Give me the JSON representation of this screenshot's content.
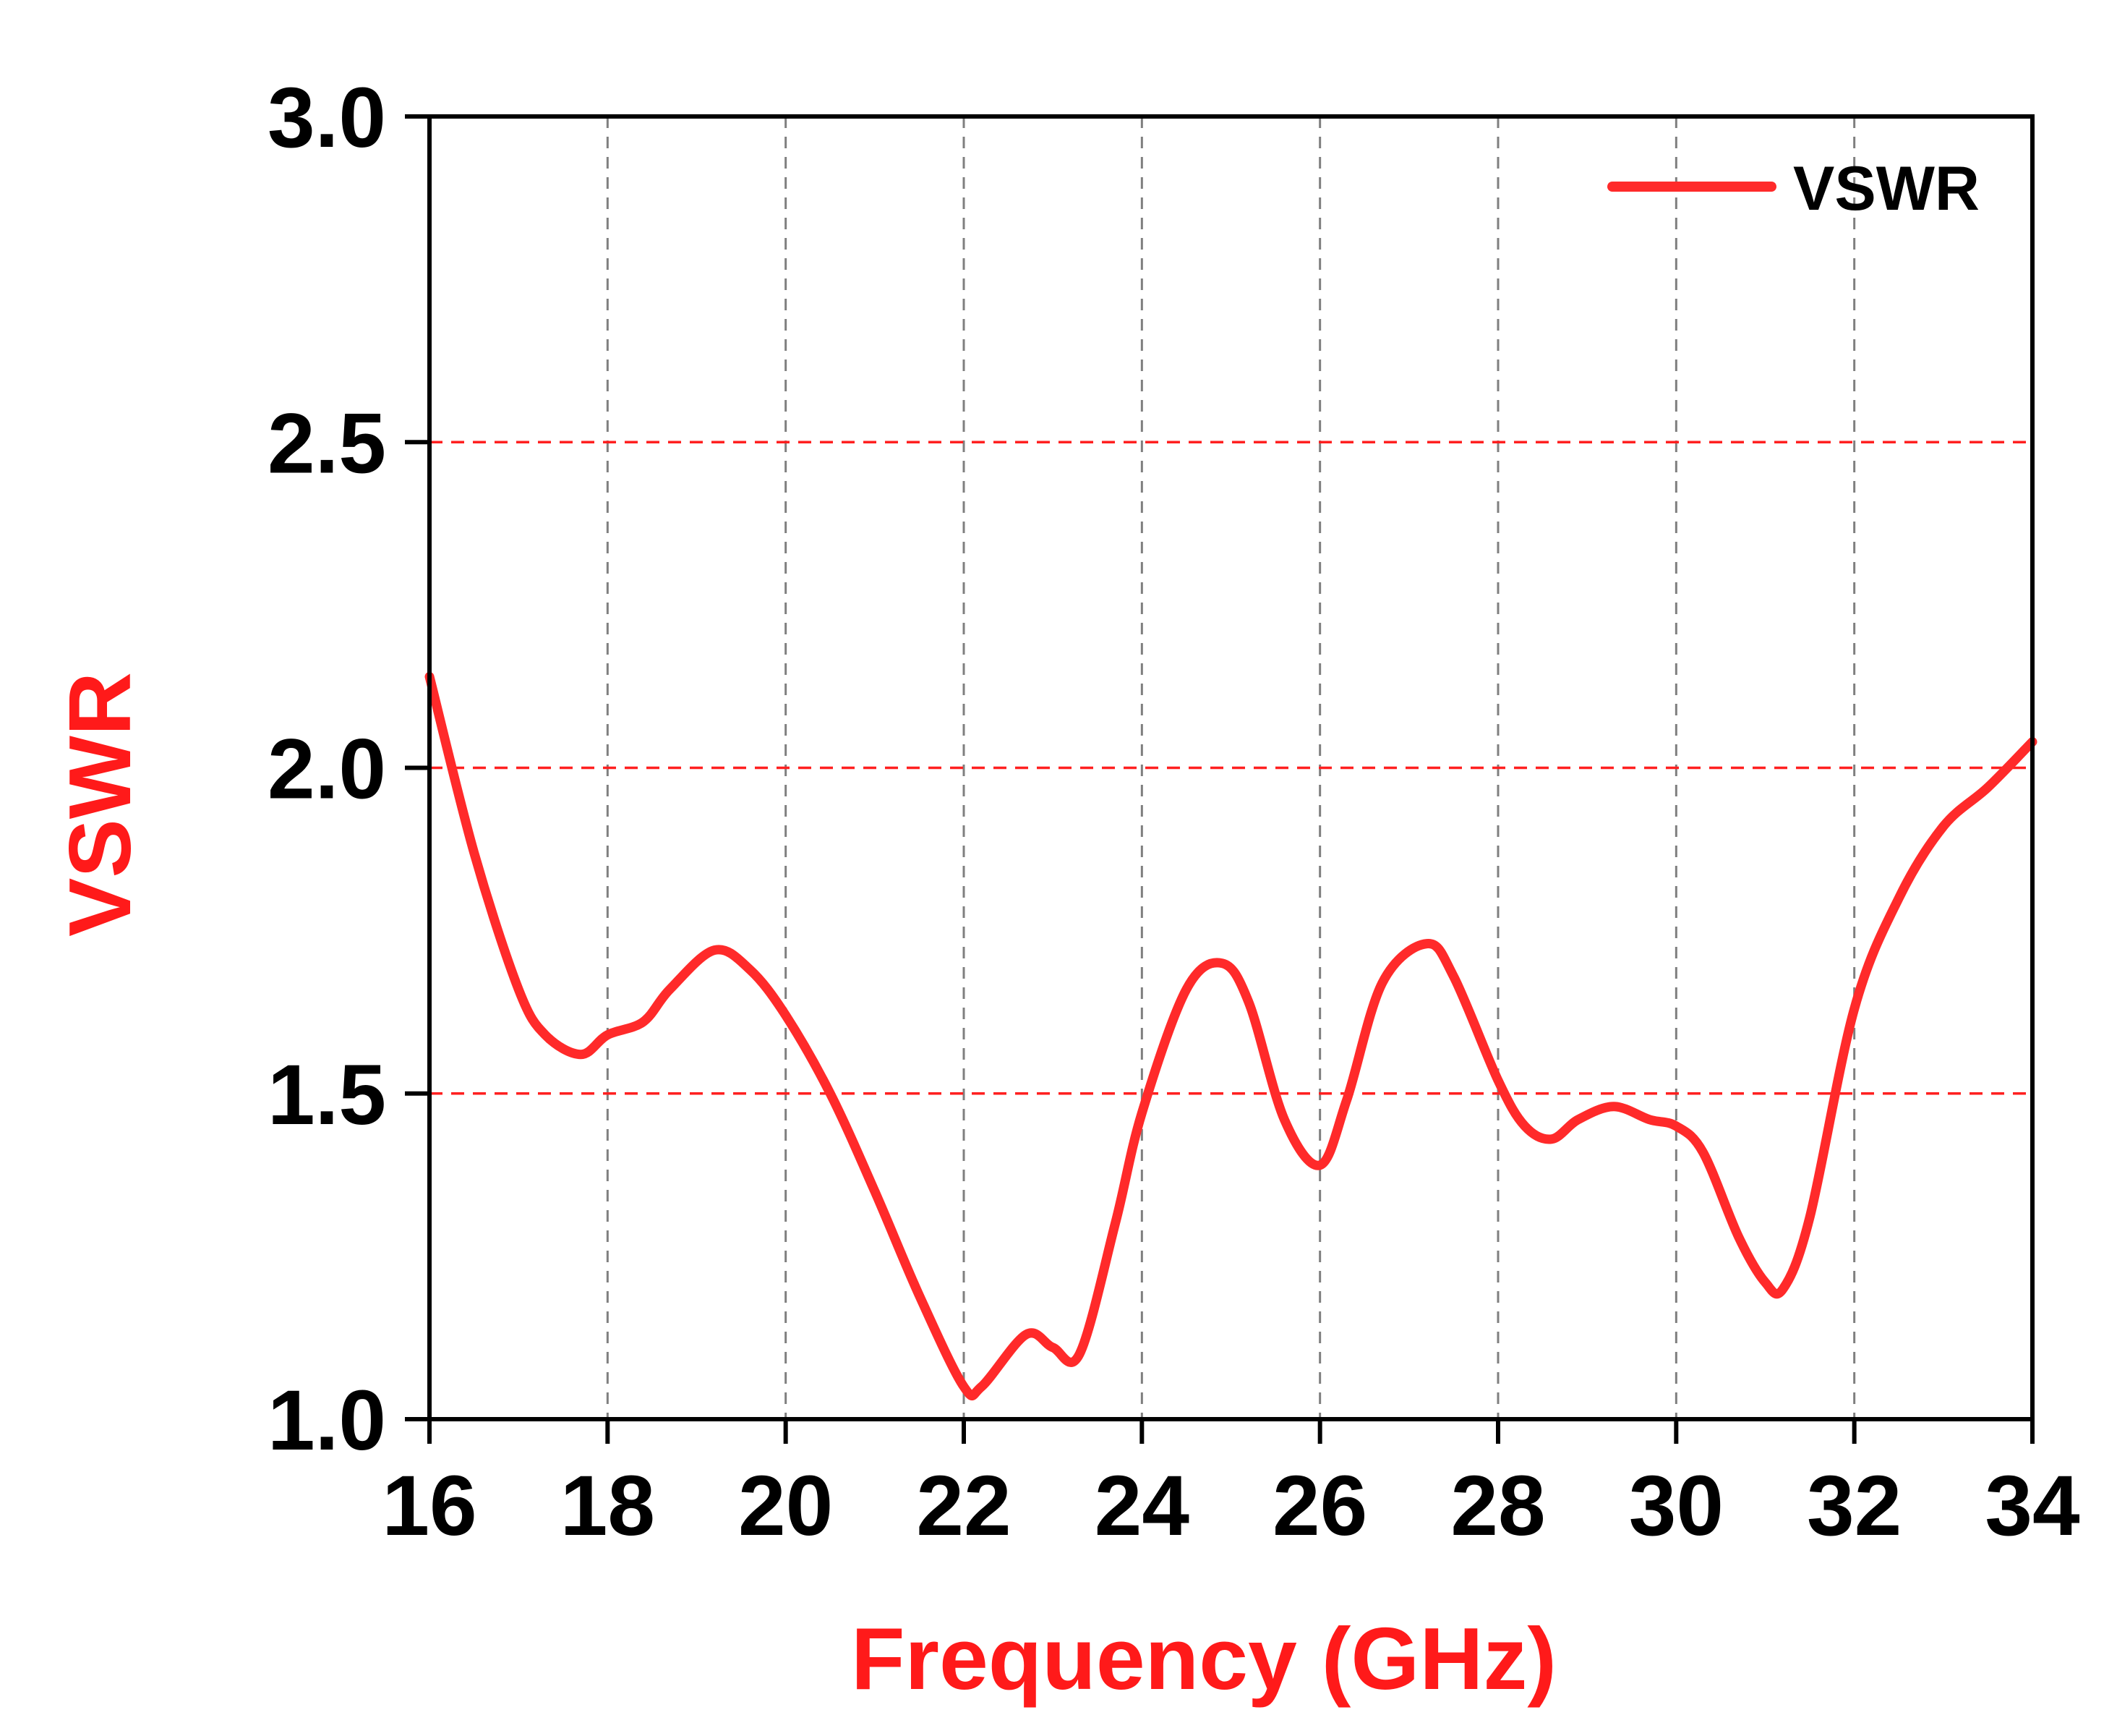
{
  "chart_data": {
    "type": "line",
    "title": "",
    "xlabel": "Frequency (GHz)",
    "ylabel": "VSWR",
    "xlim": [
      16,
      34
    ],
    "ylim": [
      1.0,
      3.0
    ],
    "x_ticks": [
      16,
      18,
      20,
      22,
      24,
      26,
      28,
      30,
      32,
      34
    ],
    "y_ticks": [
      1.0,
      1.5,
      2.0,
      2.5,
      3.0
    ],
    "x_tick_labels": [
      "16",
      "18",
      "20",
      "22",
      "24",
      "26",
      "28",
      "30",
      "32",
      "34"
    ],
    "y_tick_labels": [
      "1.0",
      "1.5",
      "2.0",
      "2.5",
      "3.0"
    ],
    "grid": {
      "vertical": true,
      "vertical_style": "dashed",
      "vertical_color": "#7f7f7f",
      "horizontal": true,
      "horizontal_style": "dashed",
      "horizontal_color": "#ff2020"
    },
    "legend": {
      "position": "top-right",
      "entries": [
        "VSWR"
      ]
    },
    "colors": {
      "series": "#ff2a2a",
      "axis_title": "#ff1a1a",
      "axes": "#000000"
    },
    "series": [
      {
        "name": "VSWR",
        "color": "#ff2a2a",
        "x": [
          16.0,
          16.5,
          17.0,
          17.3,
          17.7,
          18.0,
          18.4,
          18.7,
          19.2,
          19.6,
          20.0,
          20.5,
          21.0,
          21.5,
          22.0,
          22.2,
          22.7,
          23.0,
          23.3,
          23.7,
          24.0,
          24.5,
          24.9,
          25.2,
          25.6,
          26.0,
          26.3,
          26.7,
          27.2,
          27.5,
          28.0,
          28.3,
          28.6,
          28.9,
          29.3,
          29.7,
          30.0,
          30.3,
          30.7,
          31.0,
          31.2,
          31.5,
          32.0,
          32.5,
          33.0,
          33.5,
          34.0
        ],
        "y": [
          2.14,
          1.87,
          1.66,
          1.59,
          1.56,
          1.59,
          1.61,
          1.66,
          1.72,
          1.69,
          1.62,
          1.5,
          1.35,
          1.19,
          1.05,
          1.05,
          1.13,
          1.11,
          1.1,
          1.3,
          1.47,
          1.66,
          1.7,
          1.64,
          1.46,
          1.39,
          1.49,
          1.67,
          1.73,
          1.68,
          1.52,
          1.45,
          1.43,
          1.46,
          1.48,
          1.46,
          1.45,
          1.41,
          1.28,
          1.21,
          1.2,
          1.31,
          1.63,
          1.8,
          1.91,
          1.97,
          2.04
        ]
      }
    ]
  }
}
